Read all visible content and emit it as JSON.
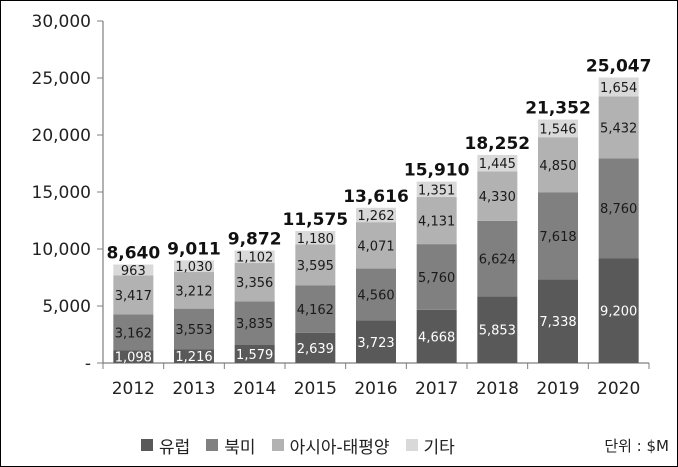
{
  "chart_data": {
    "type": "bar",
    "stacked": true,
    "categories": [
      "2012",
      "2013",
      "2014",
      "2015",
      "2016",
      "2017",
      "2018",
      "2019",
      "2020"
    ],
    "series": [
      {
        "name": "유럽",
        "color": "#595959",
        "values": [
          1098,
          1216,
          1579,
          2639,
          3723,
          4668,
          5853,
          7338,
          9200
        ]
      },
      {
        "name": "북미",
        "color": "#808080",
        "values": [
          3162,
          3553,
          3835,
          4162,
          4560,
          5760,
          6624,
          7618,
          8760
        ]
      },
      {
        "name": "아시아-태평양",
        "color": "#b2b2b2",
        "values": [
          3417,
          3212,
          3356,
          3595,
          4071,
          4131,
          4330,
          4850,
          5432
        ]
      },
      {
        "name": "기타",
        "color": "#d9d9d9",
        "values": [
          963,
          1030,
          1102,
          1180,
          1262,
          1351,
          1445,
          1546,
          1654
        ]
      }
    ],
    "series_labels": [
      [
        "1,098",
        "1,216",
        "1,579",
        "2,639",
        "3,723",
        "4,668",
        "5,853",
        "7,338",
        "9,200"
      ],
      [
        "3,162",
        "3,553",
        "3,835",
        "4,162",
        "4,560",
        "5,760",
        "6,624",
        "7,618",
        "8,760"
      ],
      [
        "3,417",
        "3,212",
        "3,356",
        "3,595",
        "4,071",
        "4,131",
        "4,330",
        "4,850",
        "5,432"
      ],
      [
        "963",
        "1,030",
        "1,102",
        "1,180",
        "1,262",
        "1,351",
        "1,445",
        "1,546",
        "1,654"
      ]
    ],
    "totals": [
      "8,640",
      "9,011",
      "9,872",
      "11,575",
      "13,616",
      "15,910",
      "18,252",
      "21,352",
      "25,047"
    ],
    "ylim": [
      0,
      30000
    ],
    "yticks": [
      0,
      5000,
      10000,
      15000,
      20000,
      25000,
      30000
    ],
    "ytick_labels": [
      "-",
      "5,000",
      "10,000",
      "15,000",
      "20,000",
      "25,000",
      "30,000"
    ],
    "legend_position": "bottom",
    "grid": false
  },
  "unit_label": "단위 : $M"
}
